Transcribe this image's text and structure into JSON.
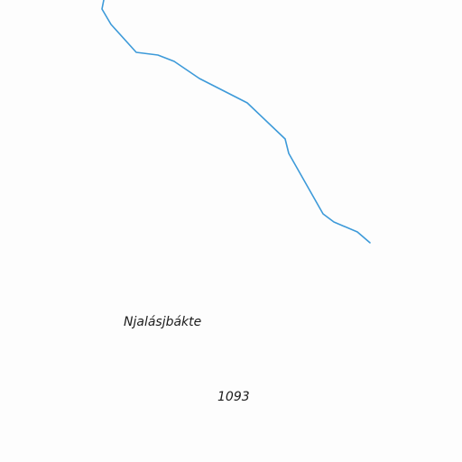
{
  "map": {
    "background_color": "#fdfdfd",
    "stream": {
      "color": "#3d9ad9"
    },
    "labels": {
      "place_name": "Njalásjbákte",
      "elevation": "1093"
    },
    "label_color": "#1c1c1c"
  }
}
